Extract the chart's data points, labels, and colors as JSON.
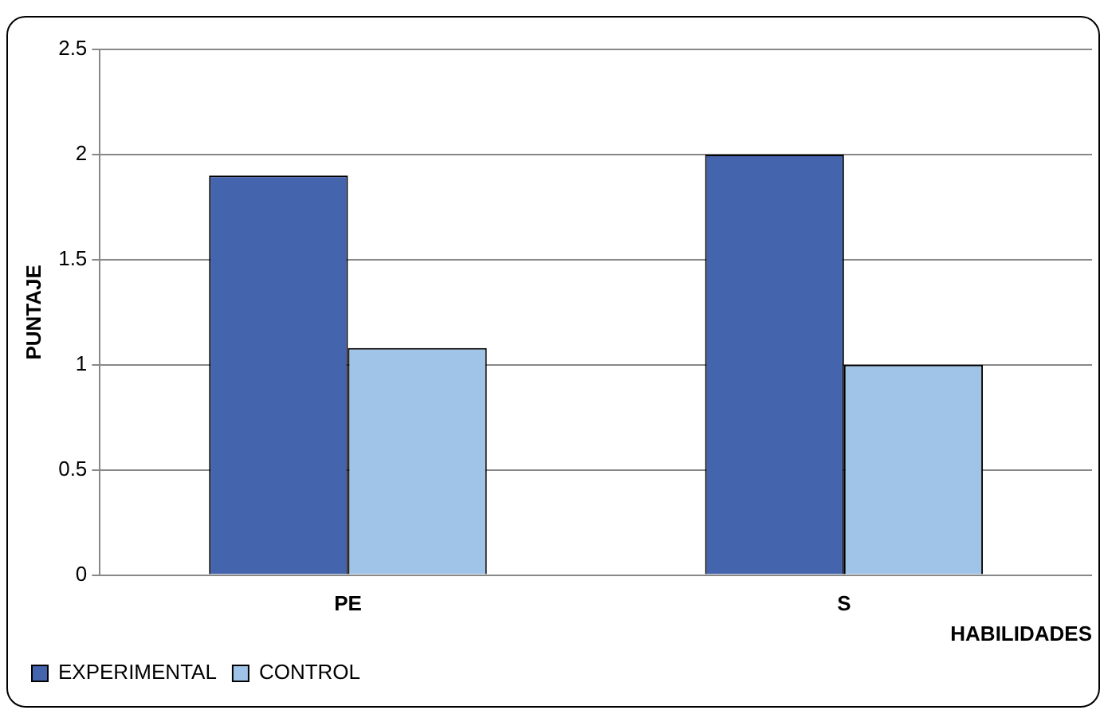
{
  "chart_data": {
    "type": "bar",
    "xlabel": "HABILIDADES",
    "ylabel": "PUNTAJE",
    "categories": [
      "PE",
      "S"
    ],
    "series": [
      {
        "name": "EXPERIMENTAL",
        "color": "#4464ad",
        "values": [
          1.9,
          2.0
        ]
      },
      {
        "name": "CONTROL",
        "color": "#a0c4e8",
        "values": [
          1.08,
          1.0
        ]
      }
    ],
    "ylim": [
      0,
      2.5
    ],
    "yticks": [
      0,
      0.5,
      1,
      1.5,
      2,
      2.5
    ],
    "grid": "y",
    "legend": "bottom left"
  }
}
